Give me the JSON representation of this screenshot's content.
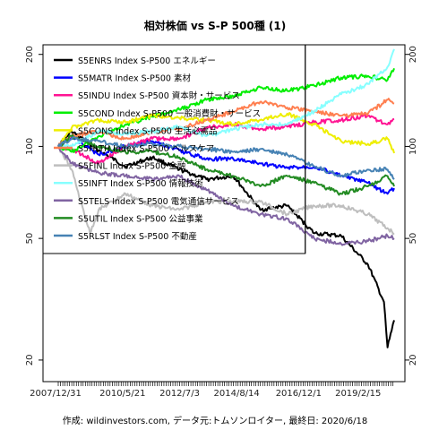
{
  "chart_data": {
    "type": "line",
    "title": "相対株価 vs S-P 500種 (1)",
    "footer": "作成: wildinvestors.com, データ元:トムソンロイター, 最終日: 2020/6/18",
    "y_scale": "log",
    "ylim": [
      17,
      215
    ],
    "yticks": [
      20,
      50,
      100,
      200
    ],
    "ytick_labels": [
      "20",
      "50",
      "100",
      "200"
    ],
    "x_range": [
      "2007-12-31",
      "2020-06-18"
    ],
    "xtick_labels": [
      "2007/12/31",
      "2010/5/21",
      "2012/7/3",
      "2014/8/14",
      "2016/12/1",
      "2019/2/15"
    ],
    "xticks": [
      "2007-12-31",
      "2010-05-21",
      "2012-07-03",
      "2014-08-14",
      "2016-12-01",
      "2019-02-15"
    ],
    "grid": false,
    "legend_position": "top-left",
    "series": [
      {
        "name": "S5ENRS Index S-P500 エネルギー",
        "color": "#000000",
        "points": [
          [
            "2007-12-31",
            100
          ],
          [
            "2008-06-30",
            112
          ],
          [
            "2009-06-30",
            97
          ],
          [
            "2010-06-30",
            86
          ],
          [
            "2011-06-30",
            92
          ],
          [
            "2012-06-30",
            84
          ],
          [
            "2013-06-30",
            78
          ],
          [
            "2014-06-30",
            80
          ],
          [
            "2015-06-30",
            62
          ],
          [
            "2016-06-30",
            64
          ],
          [
            "2017-06-30",
            52
          ],
          [
            "2018-06-30",
            51
          ],
          [
            "2019-06-30",
            41
          ],
          [
            "2020-01-31",
            31
          ],
          [
            "2020-03-20",
            22
          ],
          [
            "2020-05-15",
            25
          ],
          [
            "2020-06-18",
            27
          ]
        ]
      },
      {
        "name": "S5MATR Index S-P500 素材",
        "color": "#0000ff",
        "points": [
          [
            "2007-12-31",
            100
          ],
          [
            "2008-06-30",
            108
          ],
          [
            "2009-06-30",
            94
          ],
          [
            "2010-06-30",
            100
          ],
          [
            "2011-06-30",
            104
          ],
          [
            "2012-06-30",
            97
          ],
          [
            "2013-06-30",
            91
          ],
          [
            "2014-06-30",
            91
          ],
          [
            "2015-06-30",
            88
          ],
          [
            "2016-06-30",
            85
          ],
          [
            "2017-06-30",
            86
          ],
          [
            "2018-06-30",
            80
          ],
          [
            "2019-06-30",
            76
          ],
          [
            "2020-03-20",
            70
          ],
          [
            "2020-06-18",
            73
          ]
        ]
      },
      {
        "name": "S5INDU Index S-P500 資本財・サービス",
        "color": "#ff1493",
        "points": [
          [
            "2007-12-31",
            100
          ],
          [
            "2008-06-30",
            98
          ],
          [
            "2009-06-30",
            88
          ],
          [
            "2010-06-30",
            100
          ],
          [
            "2011-06-30",
            106
          ],
          [
            "2012-06-30",
            106
          ],
          [
            "2013-06-30",
            115
          ],
          [
            "2014-06-30",
            118
          ],
          [
            "2015-06-30",
            114
          ],
          [
            "2016-06-30",
            116
          ],
          [
            "2017-06-30",
            120
          ],
          [
            "2018-06-30",
            122
          ],
          [
            "2019-06-30",
            126
          ],
          [
            "2020-03-20",
            118
          ],
          [
            "2020-06-18",
            123
          ]
        ]
      },
      {
        "name": "S5COND Index S-P500 一般消費財・サービス",
        "color": "#00ee00",
        "points": [
          [
            "2007-12-31",
            100
          ],
          [
            "2008-06-30",
            96
          ],
          [
            "2009-06-30",
            108
          ],
          [
            "2010-06-30",
            118
          ],
          [
            "2011-06-30",
            125
          ],
          [
            "2012-06-30",
            132
          ],
          [
            "2013-06-30",
            142
          ],
          [
            "2014-06-30",
            146
          ],
          [
            "2015-06-30",
            156
          ],
          [
            "2016-06-30",
            152
          ],
          [
            "2017-06-30",
            158
          ],
          [
            "2018-06-30",
            168
          ],
          [
            "2019-06-30",
            170
          ],
          [
            "2020-03-20",
            165
          ],
          [
            "2020-06-18",
            180
          ]
        ]
      },
      {
        "name": "S5CONS Index S-P500 生活必需品",
        "color": "#eeee00",
        "points": [
          [
            "2007-12-31",
            100
          ],
          [
            "2008-06-30",
            115
          ],
          [
            "2009-06-30",
            122
          ],
          [
            "2010-06-30",
            120
          ],
          [
            "2011-06-30",
            126
          ],
          [
            "2012-06-30",
            124
          ],
          [
            "2013-06-30",
            122
          ],
          [
            "2014-06-30",
            118
          ],
          [
            "2015-06-30",
            122
          ],
          [
            "2016-06-30",
            128
          ],
          [
            "2017-06-30",
            118
          ],
          [
            "2018-06-30",
            104
          ],
          [
            "2019-06-30",
            102
          ],
          [
            "2020-03-20",
            106
          ],
          [
            "2020-06-18",
            95
          ]
        ]
      },
      {
        "name": "S5HLTH Index S-P500 ヘルスケア",
        "color": "#ff7f50",
        "points": [
          [
            "2007-12-31",
            100
          ],
          [
            "2008-06-30",
            108
          ],
          [
            "2009-06-30",
            112
          ],
          [
            "2010-06-30",
            106
          ],
          [
            "2011-06-30",
            112
          ],
          [
            "2012-06-30",
            114
          ],
          [
            "2013-06-30",
            122
          ],
          [
            "2014-06-30",
            130
          ],
          [
            "2015-06-30",
            140
          ],
          [
            "2016-06-30",
            134
          ],
          [
            "2017-06-30",
            130
          ],
          [
            "2018-06-30",
            126
          ],
          [
            "2019-06-30",
            128
          ],
          [
            "2020-03-20",
            142
          ],
          [
            "2020-06-18",
            138
          ]
        ]
      },
      {
        "name": "S5FINL Index S-P500 金融",
        "color": "#bebebe",
        "points": [
          [
            "2007-12-31",
            100
          ],
          [
            "2008-06-30",
            84
          ],
          [
            "2009-03-06",
            52
          ],
          [
            "2009-06-30",
            62
          ],
          [
            "2010-06-30",
            70
          ],
          [
            "2011-06-30",
            64
          ],
          [
            "2012-06-30",
            62
          ],
          [
            "2013-06-30",
            66
          ],
          [
            "2014-06-30",
            66
          ],
          [
            "2015-06-30",
            66
          ],
          [
            "2016-06-30",
            60
          ],
          [
            "2017-06-30",
            64
          ],
          [
            "2018-06-30",
            64
          ],
          [
            "2019-06-30",
            60
          ],
          [
            "2020-03-20",
            54
          ],
          [
            "2020-06-18",
            52
          ]
        ]
      },
      {
        "name": "S5INFT Index S-P500 情報技術",
        "color": "#87ffff",
        "points": [
          [
            "2007-12-31",
            100
          ],
          [
            "2008-06-30",
            100
          ],
          [
            "2009-06-30",
            112
          ],
          [
            "2010-06-30",
            110
          ],
          [
            "2011-06-30",
            112
          ],
          [
            "2012-06-30",
            116
          ],
          [
            "2013-06-30",
            108
          ],
          [
            "2014-06-30",
            114
          ],
          [
            "2015-06-30",
            118
          ],
          [
            "2016-06-30",
            118
          ],
          [
            "2017-06-30",
            130
          ],
          [
            "2018-06-30",
            148
          ],
          [
            "2019-06-30",
            160
          ],
          [
            "2020-03-20",
            182
          ],
          [
            "2020-06-18",
            208
          ]
        ]
      },
      {
        "name": "S5TELS Index S-P500 電気通信サービス",
        "color": "#8064a2",
        "points": [
          [
            "2007-12-31",
            100
          ],
          [
            "2008-06-30",
            88
          ],
          [
            "2009-06-30",
            82
          ],
          [
            "2010-06-30",
            80
          ],
          [
            "2011-06-30",
            78
          ],
          [
            "2012-06-30",
            80
          ],
          [
            "2013-06-30",
            72
          ],
          [
            "2014-06-30",
            64
          ],
          [
            "2015-06-30",
            60
          ],
          [
            "2016-06-30",
            58
          ],
          [
            "2017-06-30",
            50
          ],
          [
            "2018-06-30",
            48
          ],
          [
            "2019-06-30",
            49
          ],
          [
            "2020-03-20",
            51
          ],
          [
            "2020-06-18",
            50
          ]
        ]
      },
      {
        "name": "S5UTIL Index S-P500 公益事業",
        "color": "#228b22",
        "points": [
          [
            "2007-12-31",
            100
          ],
          [
            "2008-06-30",
            108
          ],
          [
            "2009-06-30",
            100
          ],
          [
            "2010-06-30",
            96
          ],
          [
            "2011-06-30",
            96
          ],
          [
            "2012-06-30",
            92
          ],
          [
            "2013-06-30",
            84
          ],
          [
            "2014-06-30",
            80
          ],
          [
            "2015-06-30",
            74
          ],
          [
            "2016-06-30",
            80
          ],
          [
            "2017-06-30",
            76
          ],
          [
            "2018-06-30",
            70
          ],
          [
            "2019-06-30",
            74
          ],
          [
            "2020-03-20",
            80
          ],
          [
            "2020-06-18",
            74
          ]
        ]
      },
      {
        "name": "S5RLST Index S-P500 不動産",
        "color": "#4682b4",
        "points": [
          [
            "2007-12-31",
            100
          ],
          [
            "2008-06-30",
            106
          ],
          [
            "2009-06-30",
            104
          ],
          [
            "2010-06-30",
            100
          ],
          [
            "2011-06-30",
            102
          ],
          [
            "2012-06-30",
            100
          ],
          [
            "2013-06-30",
            98
          ],
          [
            "2014-06-30",
            96
          ],
          [
            "2015-06-30",
            98
          ],
          [
            "2016-06-30",
            94
          ],
          [
            "2017-06-30",
            86
          ],
          [
            "2018-06-30",
            80
          ],
          [
            "2019-06-30",
            84
          ],
          [
            "2020-03-20",
            84
          ],
          [
            "2020-06-18",
            78
          ]
        ]
      }
    ]
  }
}
